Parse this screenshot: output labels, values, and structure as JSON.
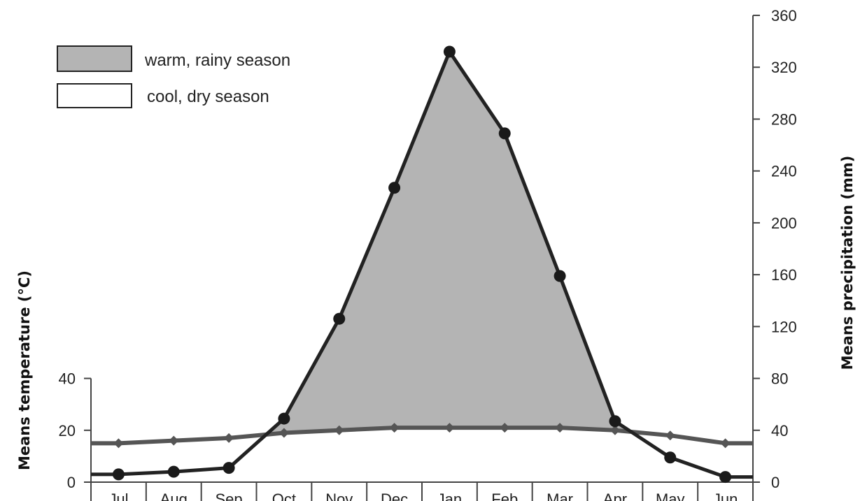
{
  "chart_data": {
    "type": "line",
    "categories": [
      "Jul",
      "Aug",
      "Sep",
      "Oct",
      "Nov",
      "Dec",
      "Jan",
      "Feb",
      "Mar",
      "Apr",
      "May",
      "Jun"
    ],
    "series": [
      {
        "axis": "right",
        "values": [
          6,
          8,
          11,
          49,
          126,
          227,
          332,
          269,
          159,
          47,
          19,
          4
        ],
        "marker": "circle",
        "color": "#222222"
      },
      {
        "axis": "left",
        "values": [
          15,
          16,
          17,
          19,
          20,
          21,
          21,
          21,
          21,
          20,
          18,
          15
        ],
        "marker": "diamond",
        "color": "#555555"
      }
    ],
    "y_left": {
      "label": "Means temperature (°C)",
      "ticks": [
        0,
        20,
        40
      ],
      "range": [
        0,
        40
      ]
    },
    "y_right": {
      "label": "Means precipitation (mm)",
      "ticks": [
        0,
        40,
        80,
        120,
        160,
        200,
        240,
        280,
        320,
        360
      ],
      "range": [
        0,
        360
      ]
    },
    "scale_note": "left axis 20°C aligns with right axis 40 mm",
    "legend": {
      "placement": "top-left",
      "items": [
        {
          "label": "warm, rainy season",
          "fill": "#b4b4b4"
        },
        {
          "label": "cool, dry season",
          "fill": "#ffffff"
        }
      ]
    },
    "grid": false,
    "colors": {
      "rain_fill": "#b4b4b4",
      "precip_line": "#222222",
      "temp_line": "#555555",
      "axis": "#444444"
    }
  }
}
